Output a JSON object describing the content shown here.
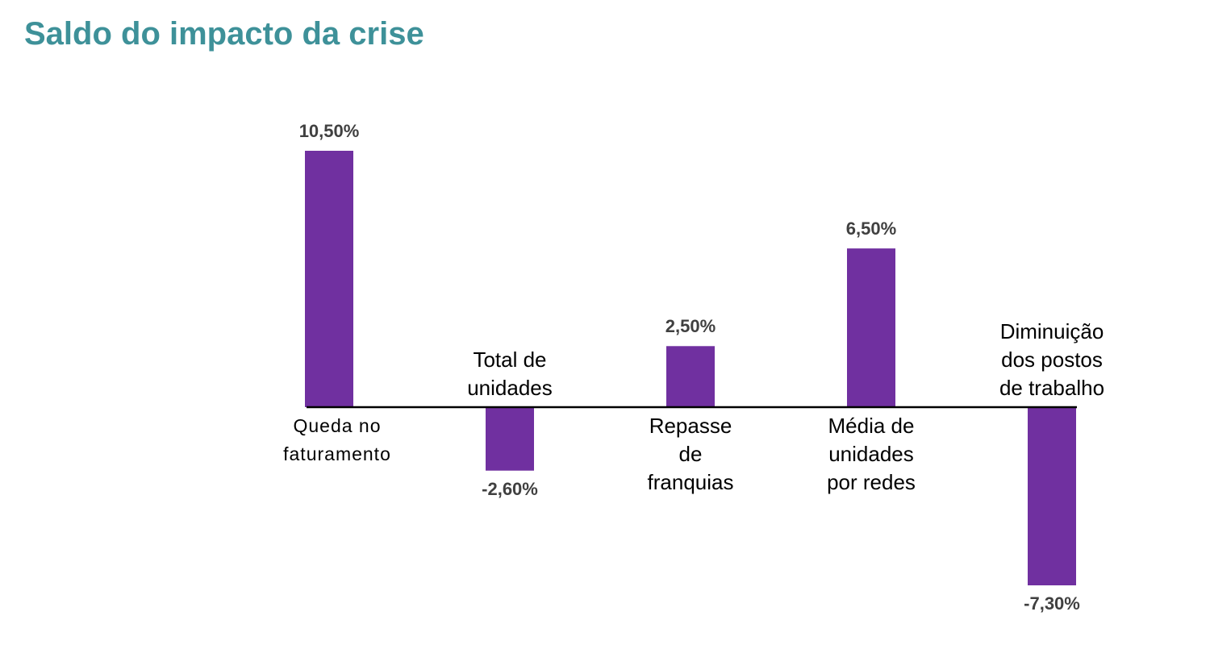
{
  "chart_data": {
    "type": "bar",
    "title": "Saldo do impacto da crise",
    "categories": [
      "Queda no faturamento",
      "Total de unidades",
      "Repasse de franquias",
      "Média de unidades por redes",
      "Diminuição dos postos de trabalho"
    ],
    "values": [
      10.5,
      -2.6,
      2.5,
      6.5,
      -7.3
    ],
    "value_labels": [
      "10,50%",
      "-2,60%",
      "2,50%",
      "6,50%",
      "-7,30%"
    ],
    "color": "#7030a0"
  }
}
